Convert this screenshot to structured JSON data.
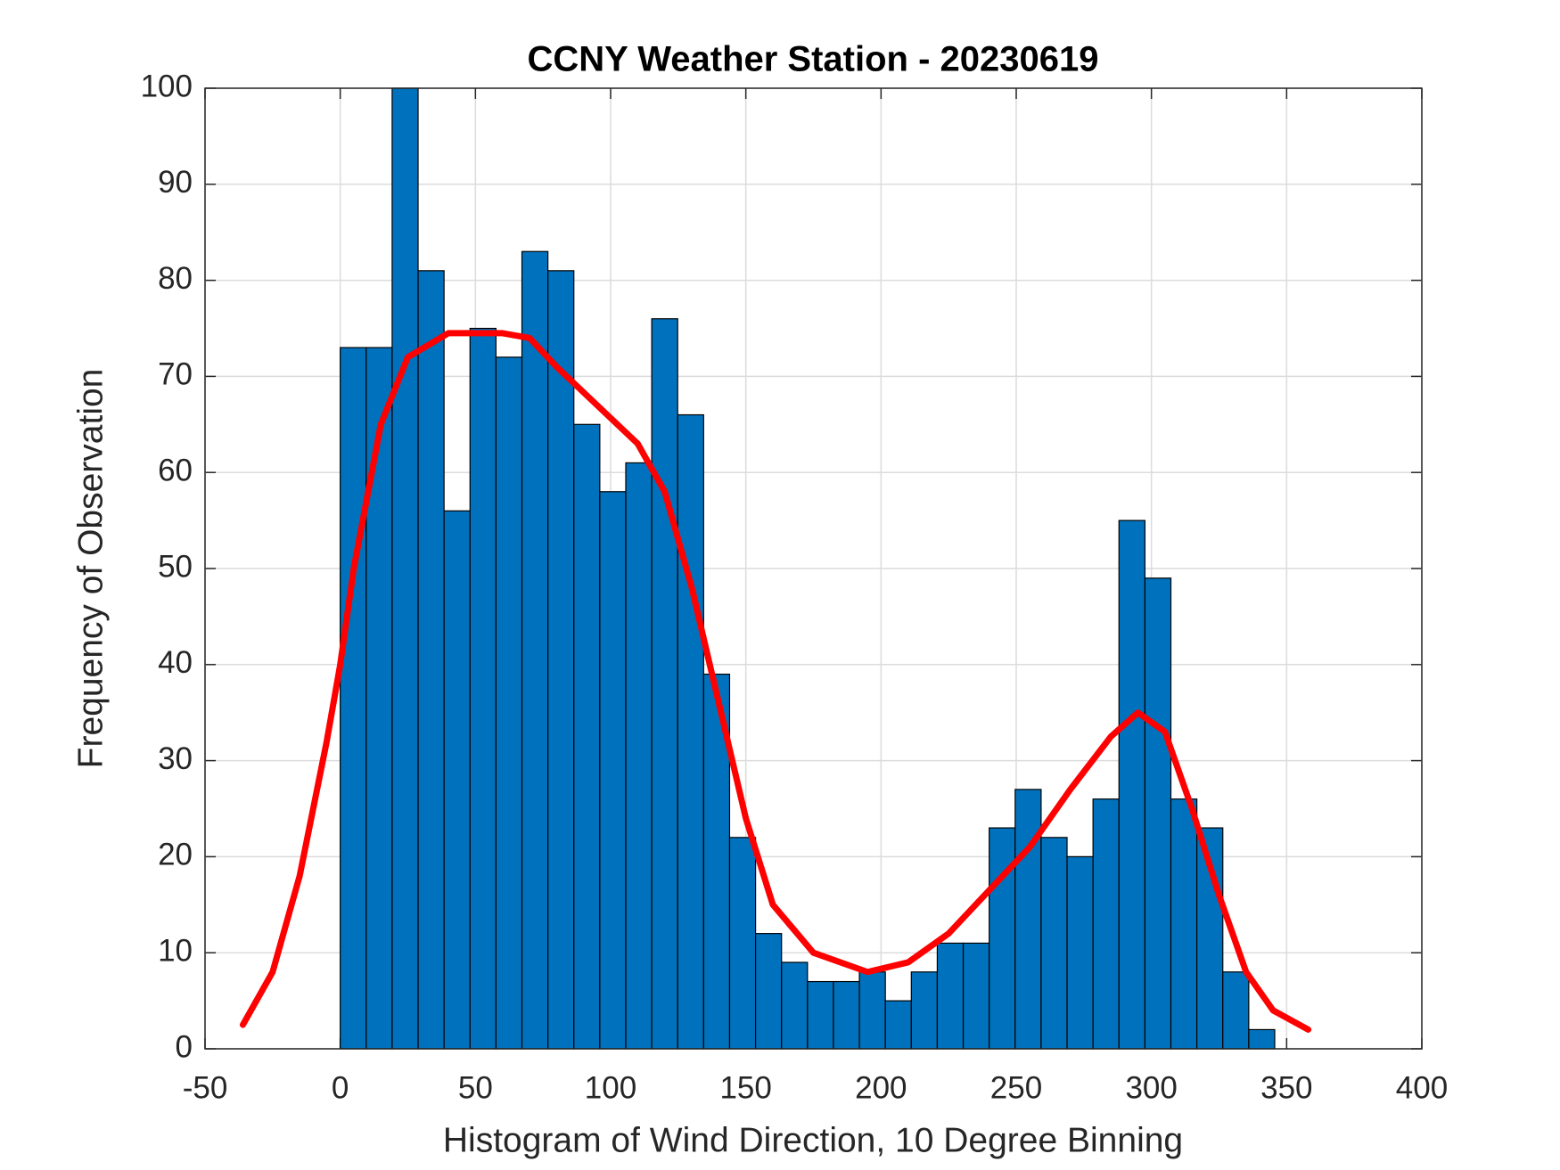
{
  "chart_data": {
    "type": "histogram",
    "title": "CCNY Weather Station - 20230619",
    "x_label": "Histogram of Wind Direction, 10 Degree Binning",
    "y_label": "Frequency of Observation",
    "bins": [
      0,
      9.6,
      19.2,
      28.8,
      38.4,
      48,
      57.6,
      67.2,
      76.8,
      86.4,
      96,
      105.6,
      115.2,
      124.8,
      134.4,
      144,
      153.6,
      163.2,
      172.8,
      182.4,
      192,
      201.6,
      211.2,
      220.8,
      230.4,
      240,
      249.6,
      259.2,
      268.8,
      278.4,
      288,
      297.6,
      307.2,
      316.8,
      326.4,
      336,
      345.6
    ],
    "values": [
      73,
      73,
      100,
      81,
      56,
      75,
      72,
      83,
      81,
      65,
      58,
      61,
      76,
      66,
      39,
      22,
      12,
      9,
      7,
      7,
      8,
      5,
      8,
      11,
      11,
      23,
      27,
      22,
      20,
      26,
      55,
      49,
      26,
      23,
      8,
      2
    ],
    "color": "#0072bd",
    "curve": {
      "color": "#ff0000",
      "x": [
        -36,
        -25,
        -15,
        -5,
        0,
        5,
        15,
        25,
        40,
        60,
        70,
        80,
        95,
        110,
        120,
        130,
        140,
        150,
        160,
        175,
        195,
        210,
        225,
        240,
        255,
        270,
        285,
        295,
        305,
        315,
        325,
        335,
        345,
        358
      ],
      "y": [
        2.5,
        8,
        18,
        32,
        40,
        50,
        65,
        72,
        74.5,
        74.5,
        74,
        71,
        67,
        63,
        58,
        48,
        36,
        24,
        15,
        10,
        8,
        9,
        12,
        16.5,
        21,
        27,
        32.5,
        35,
        33,
        25,
        16,
        8,
        4,
        2
      ]
    },
    "xlim": [
      -50,
      400
    ],
    "xticks": [
      -50,
      0,
      50,
      100,
      150,
      200,
      250,
      300,
      350,
      400
    ],
    "ylim": [
      0,
      100
    ],
    "yticks": [
      0,
      10,
      20,
      30,
      40,
      50,
      60,
      70,
      80,
      90,
      100
    ],
    "grid": true
  }
}
